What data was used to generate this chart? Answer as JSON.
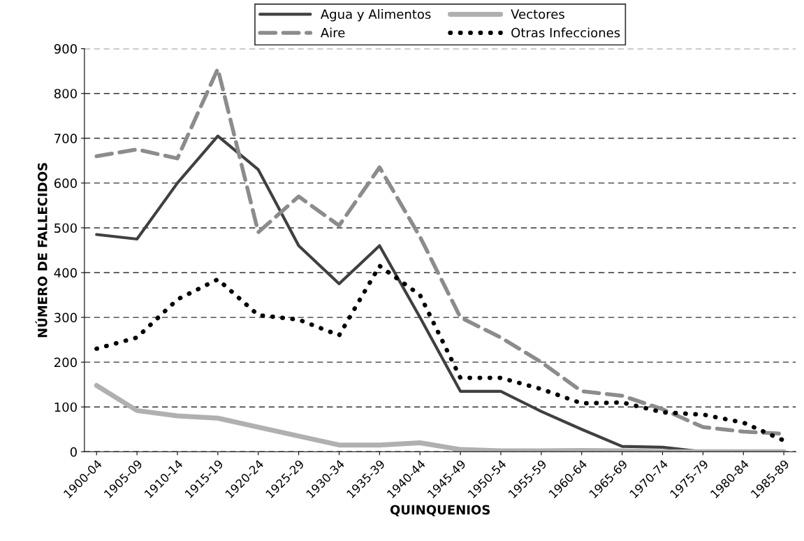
{
  "chart_data": {
    "type": "line",
    "xlabel": "QUINQUENIOS",
    "ylabel": "NÚMERO DE FALLECIDOS",
    "categories": [
      "1900-04",
      "1905-09",
      "1910-14",
      "1915-19",
      "1920-24",
      "1925-29",
      "1930-34",
      "1935-39",
      "1940-44",
      "1945-49",
      "1950-54",
      "1955-59",
      "1960-64",
      "1965-69",
      "1970-74",
      "1975-79",
      "1980-84",
      "1985-89"
    ],
    "series": [
      {
        "name": "Agua y Alimentos",
        "color": "#404040",
        "line_style": "solid",
        "values": [
          485,
          475,
          600,
          705,
          630,
          460,
          375,
          460,
          300,
          135,
          135,
          90,
          50,
          12,
          10,
          0,
          0,
          0
        ]
      },
      {
        "name": "Aire",
        "color": "#8c8c8c",
        "line_style": "dashed",
        "values": [
          660,
          675,
          655,
          855,
          490,
          570,
          505,
          635,
          480,
          300,
          255,
          200,
          135,
          125,
          95,
          55,
          45,
          40
        ]
      },
      {
        "name": "Vectores",
        "color": "#b0b0b0",
        "line_style": "solid",
        "values": [
          148,
          92,
          80,
          75,
          55,
          35,
          15,
          15,
          20,
          5,
          2,
          2,
          3,
          2,
          0,
          0,
          0,
          0
        ]
      },
      {
        "name": "Otras Infecciones",
        "color": "#000000",
        "line_style": "dotted",
        "values": [
          230,
          255,
          340,
          385,
          305,
          295,
          260,
          415,
          350,
          165,
          165,
          140,
          108,
          110,
          88,
          83,
          65,
          25
        ]
      }
    ],
    "ylim": [
      0,
      900
    ],
    "yticks": [
      0,
      100,
      200,
      300,
      400,
      500,
      600,
      700,
      800,
      900
    ],
    "grid": "y",
    "legend": "top",
    "marker": "none"
  }
}
